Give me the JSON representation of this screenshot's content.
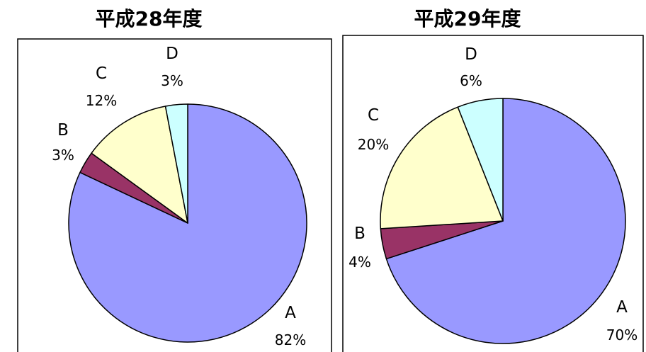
{
  "chart_data": [
    {
      "type": "pie",
      "title": "平成28年度",
      "categories": [
        "A",
        "B",
        "C",
        "D"
      ],
      "values": [
        82,
        3,
        12,
        3
      ],
      "labels": [
        "82%",
        "3%",
        "12%",
        "3%"
      ],
      "colors": [
        "#9999ff",
        "#993366",
        "#ffffcc",
        "#ccffff"
      ],
      "start": "12 o'clock",
      "direction": "clockwise"
    },
    {
      "type": "pie",
      "title": "平成29年度",
      "categories": [
        "A",
        "B",
        "C",
        "D"
      ],
      "values": [
        70,
        4,
        20,
        6
      ],
      "labels": [
        "70%",
        "4%",
        "20%",
        "6%"
      ],
      "colors": [
        "#9999ff",
        "#993366",
        "#ffffcc",
        "#ccffff"
      ],
      "start": "12 o'clock",
      "direction": "clockwise"
    }
  ]
}
